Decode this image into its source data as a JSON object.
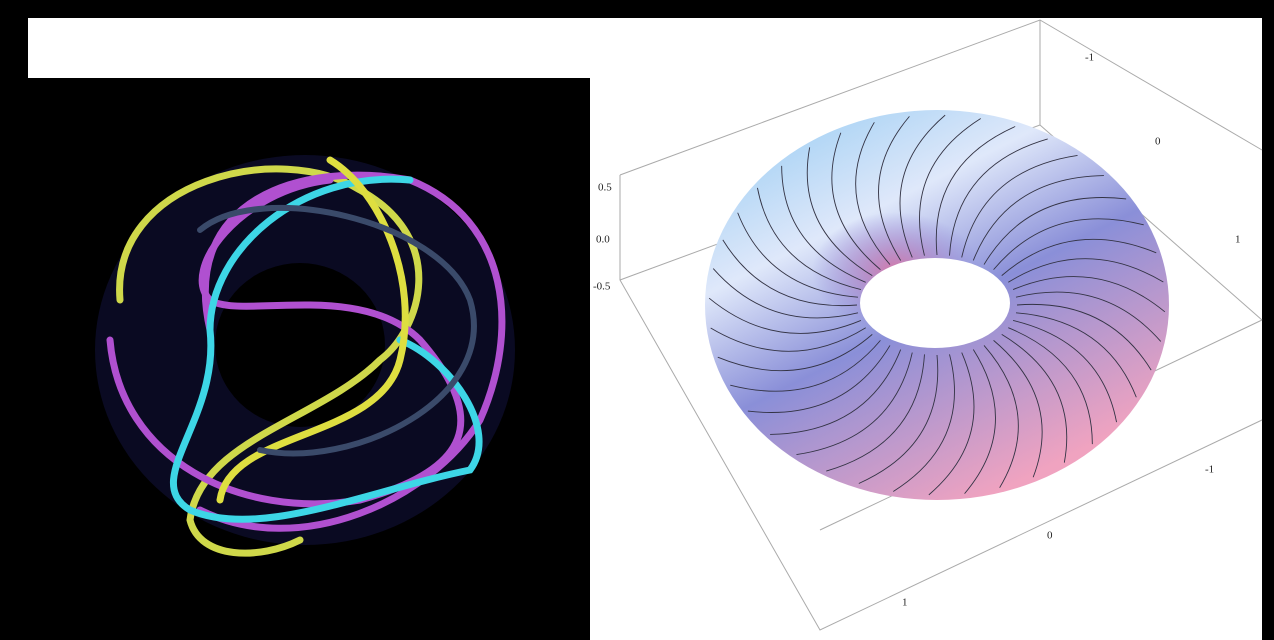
{
  "plot_3d": {
    "z_tick_labels": [
      "0.5",
      "0.0",
      "-0.5"
    ],
    "back_tick_labels": [
      "-1",
      "0",
      "1"
    ],
    "front_tick_labels": [
      "-1",
      "0",
      "1"
    ]
  }
}
